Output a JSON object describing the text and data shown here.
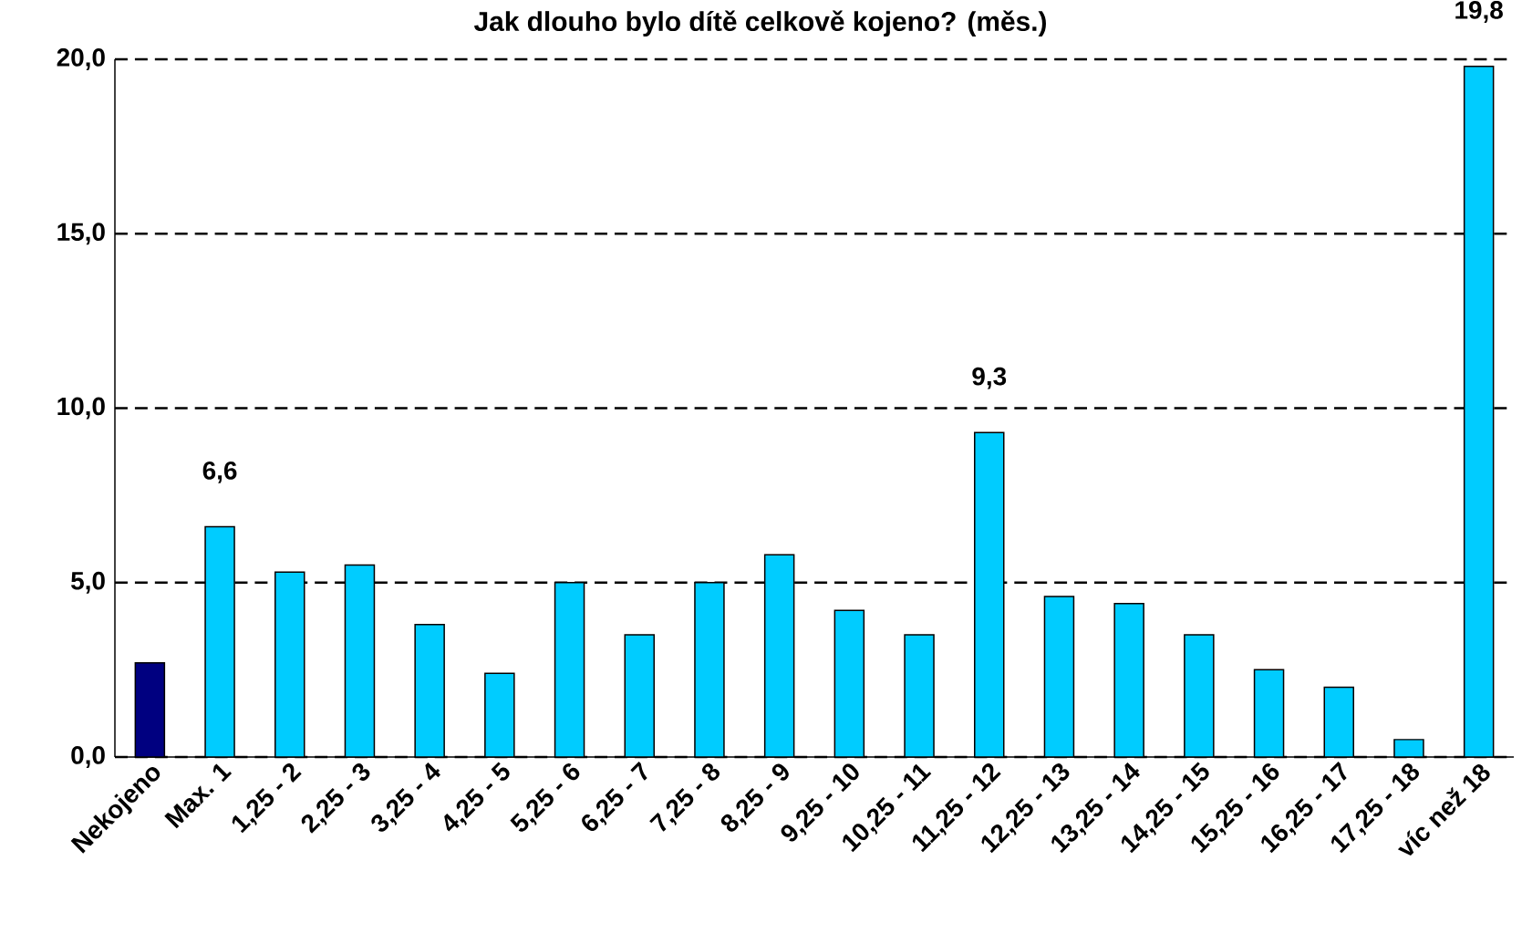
{
  "chart_data": {
    "type": "bar",
    "title": "Jak dlouho bylo dítě celkově kojeno? (měs.)",
    "categories": [
      "Nekojeno",
      "Max. 1",
      "1,25 - 2",
      "2,25 - 3",
      "3,25 - 4",
      "4,25 - 5",
      "5,25 - 6",
      "6,25 - 7",
      "7,25 - 8",
      "8,25 - 9",
      "9,25 - 10",
      "10,25 - 11",
      "11,25 - 12",
      "12,25 - 13",
      "13,25 - 14",
      "14,25 - 15",
      "15,25 - 16",
      "16,25 - 17",
      "17,25 - 18",
      "víc než 18"
    ],
    "values": [
      2.7,
      6.6,
      5.3,
      5.5,
      3.8,
      2.4,
      5.0,
      3.5,
      5.0,
      5.8,
      4.2,
      3.5,
      9.3,
      4.6,
      4.4,
      3.5,
      2.5,
      2.0,
      0.5,
      19.8
    ],
    "colors": [
      "#000080",
      "#00ccff",
      "#00ccff",
      "#00ccff",
      "#00ccff",
      "#00ccff",
      "#00ccff",
      "#00ccff",
      "#00ccff",
      "#00ccff",
      "#00ccff",
      "#00ccff",
      "#00ccff",
      "#00ccff",
      "#00ccff",
      "#00ccff",
      "#00ccff",
      "#00ccff",
      "#00ccff",
      "#00ccff"
    ],
    "value_labels": [
      null,
      "6,6",
      null,
      null,
      null,
      null,
      null,
      null,
      null,
      null,
      null,
      null,
      "9,3",
      null,
      null,
      null,
      null,
      null,
      null,
      "19,8"
    ],
    "ylim": [
      0,
      20
    ],
    "yticks": [
      {
        "value": 0,
        "label": "0,0"
      },
      {
        "value": 5,
        "label": "5,0"
      },
      {
        "value": 10,
        "label": "10,0"
      },
      {
        "value": 15,
        "label": "15,0"
      },
      {
        "value": 20,
        "label": "20,0"
      }
    ],
    "grid": "y"
  }
}
